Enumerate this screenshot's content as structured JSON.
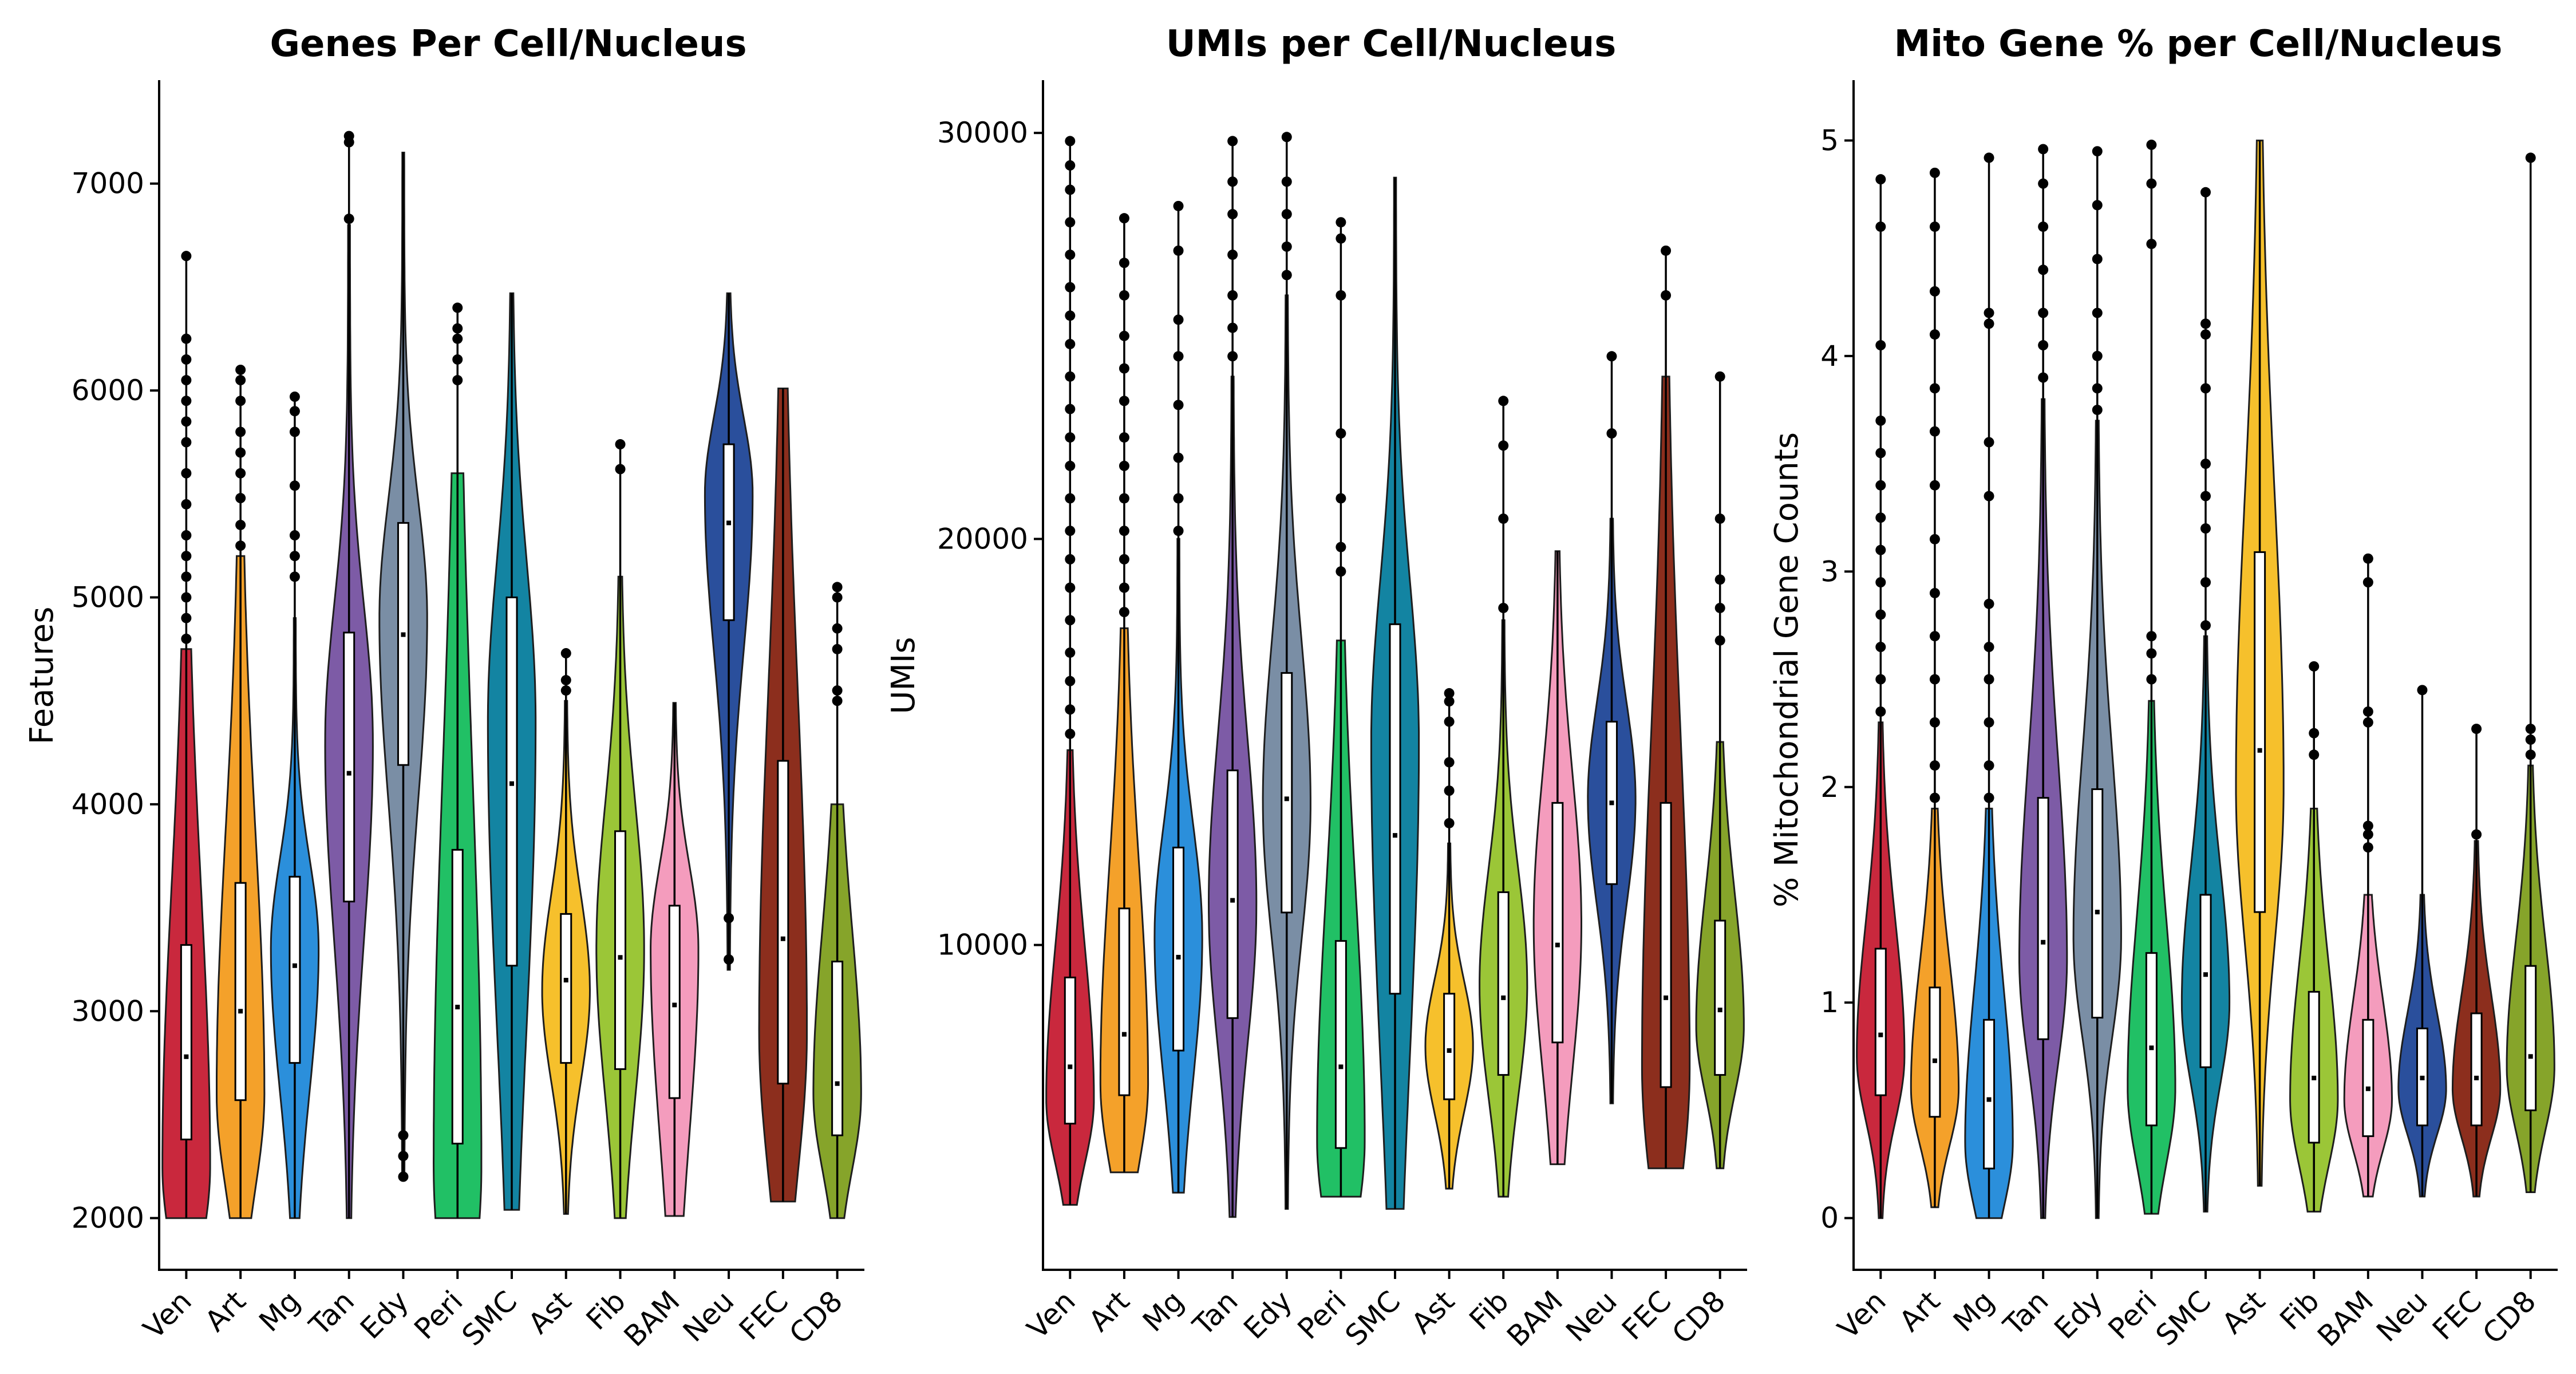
{
  "chart_data": [
    {
      "type": "violin",
      "title": "Genes Per Cell/Nucleus",
      "xlabel": "",
      "ylabel": "Features",
      "ylim": [
        1750,
        7500
      ],
      "yticks": [
        2000,
        3000,
        4000,
        5000,
        6000,
        7000
      ],
      "ytick_labels": [
        "2000",
        "3000",
        "4000",
        "5000",
        "6000",
        "7000"
      ],
      "categories": [
        "Ven",
        "Art",
        "Mg",
        "Tan",
        "Edy",
        "Peri",
        "SMC",
        "Ast",
        "Fib",
        "BAM",
        "Neu",
        "FEC",
        "CD8"
      ],
      "colors": [
        "#c9283d",
        "#f4a12a",
        "#2b8fdb",
        "#7d5ba6",
        "#7a8ea5",
        "#21c065",
        "#1384a2",
        "#f6c02c",
        "#9bc637",
        "#f49cbd",
        "#2a4f9c",
        "#8c2e1d",
        "#86a42a"
      ],
      "series": [
        {
          "min": 2000,
          "q1": 2380,
          "median": 2780,
          "q3": 3320,
          "max": 4750,
          "mode": 2250,
          "outliers": [
            4800,
            4900,
            5000,
            5100,
            5200,
            5300,
            5450,
            5600,
            5750,
            5850,
            5950,
            6050,
            6150,
            6250,
            6650
          ]
        },
        {
          "min": 2000,
          "q1": 2570,
          "median": 3000,
          "q3": 3620,
          "max": 5200,
          "mode": 2600,
          "outliers": [
            5250,
            5350,
            5480,
            5600,
            5700,
            5800,
            5950,
            6050,
            6100
          ]
        },
        {
          "min": 2000,
          "q1": 2750,
          "median": 3220,
          "q3": 3650,
          "max": 4900,
          "mode": 3300,
          "outliers": [
            5100,
            5200,
            5300,
            5540,
            5800,
            5900,
            5970
          ]
        },
        {
          "min": 2000,
          "q1": 3530,
          "median": 4150,
          "q3": 4830,
          "max": 6800,
          "mode": 4300,
          "outliers": [
            6830,
            7200,
            7230
          ]
        },
        {
          "min": 2200,
          "q1": 4190,
          "median": 4820,
          "q3": 5360,
          "max": 7150,
          "mode": 4900,
          "outliers": [
            2200,
            2300,
            2400
          ]
        },
        {
          "min": 2000,
          "q1": 2360,
          "median": 3020,
          "q3": 3780,
          "max": 5600,
          "mode": 2250,
          "outliers": [
            6050,
            6150,
            6250,
            6300,
            6400
          ]
        },
        {
          "min": 2040,
          "q1": 3220,
          "median": 4100,
          "q3": 5000,
          "max": 6470,
          "mode": 4400,
          "outliers": []
        },
        {
          "min": 2020,
          "q1": 2750,
          "median": 3150,
          "q3": 3470,
          "max": 4500,
          "mode": 3100,
          "outliers": [
            4550,
            4600,
            4730
          ]
        },
        {
          "min": 2000,
          "q1": 2720,
          "median": 3260,
          "q3": 3870,
          "max": 5100,
          "mode": 3300,
          "outliers": [
            5620,
            5740
          ]
        },
        {
          "min": 2010,
          "q1": 2580,
          "median": 3030,
          "q3": 3510,
          "max": 4490,
          "mode": 3300,
          "outliers": []
        },
        {
          "min": 3200,
          "q1": 4890,
          "median": 5360,
          "q3": 5740,
          "max": 6470,
          "mode": 5500,
          "outliers": [
            3250,
            3450
          ]
        },
        {
          "min": 2080,
          "q1": 2650,
          "median": 3350,
          "q3": 4210,
          "max": 6010,
          "mode": 2900,
          "outliers": []
        },
        {
          "min": 2000,
          "q1": 2400,
          "median": 2650,
          "q3": 3240,
          "max": 4000,
          "mode": 2600,
          "outliers": [
            4500,
            4550,
            4750,
            4850,
            5000,
            5050
          ]
        }
      ]
    },
    {
      "type": "violin",
      "title": "UMIs per Cell/Nucleus",
      "xlabel": "",
      "ylabel": "UMIs",
      "ylim": [
        2000,
        31300
      ],
      "yticks": [
        10000,
        20000,
        30000
      ],
      "ytick_labels": [
        "10000",
        "20000",
        "30000"
      ],
      "categories": [
        "Ven",
        "Art",
        "Mg",
        "Tan",
        "Edy",
        "Peri",
        "SMC",
        "Ast",
        "Fib",
        "BAM",
        "Neu",
        "FEC",
        "CD8"
      ],
      "colors": [
        "#c9283d",
        "#f4a12a",
        "#2b8fdb",
        "#7d5ba6",
        "#7a8ea5",
        "#21c065",
        "#1384a2",
        "#f6c02c",
        "#9bc637",
        "#f49cbd",
        "#2a4f9c",
        "#8c2e1d",
        "#86a42a"
      ],
      "series": [
        {
          "min": 3600,
          "q1": 5600,
          "median": 7000,
          "q3": 9200,
          "max": 14800,
          "mode": 6200,
          "outliers": [
            15200,
            15800,
            16500,
            17200,
            18000,
            18800,
            19500,
            20200,
            21000,
            21800,
            22500,
            23200,
            24000,
            24800,
            25500,
            26200,
            27000,
            27800,
            28600,
            29200,
            29800
          ]
        },
        {
          "min": 4400,
          "q1": 6300,
          "median": 7800,
          "q3": 10900,
          "max": 17800,
          "mode": 6600,
          "outliers": [
            18200,
            18800,
            19500,
            20200,
            21000,
            21800,
            22500,
            23400,
            24200,
            25000,
            26000,
            26800,
            27900
          ]
        },
        {
          "min": 3900,
          "q1": 7400,
          "median": 9700,
          "q3": 12400,
          "max": 20000,
          "mode": 10200,
          "outliers": [
            20200,
            21000,
            22000,
            23300,
            24500,
            25400,
            27100,
            28200
          ]
        },
        {
          "min": 3300,
          "q1": 8200,
          "median": 11100,
          "q3": 14300,
          "max": 24000,
          "mode": 11000,
          "outliers": [
            24500,
            25200,
            26000,
            27000,
            28000,
            28800,
            29800
          ]
        },
        {
          "min": 3500,
          "q1": 10800,
          "median": 13600,
          "q3": 16700,
          "max": 26000,
          "mode": 13500,
          "outliers": [
            26500,
            27200,
            28000,
            28800,
            29900
          ]
        },
        {
          "min": 3800,
          "q1": 5000,
          "median": 7000,
          "q3": 10100,
          "max": 17500,
          "mode": 5200,
          "outliers": [
            19200,
            19800,
            21000,
            22600,
            26000,
            27400,
            27800
          ]
        },
        {
          "min": 3500,
          "q1": 8800,
          "median": 12700,
          "q3": 17900,
          "max": 28900,
          "mode": 15000,
          "outliers": []
        },
        {
          "min": 4000,
          "q1": 6200,
          "median": 7400,
          "q3": 8800,
          "max": 12500,
          "mode": 7500,
          "outliers": [
            13000,
            13800,
            14500,
            15500,
            16000,
            16200
          ]
        },
        {
          "min": 3800,
          "q1": 6800,
          "median": 8700,
          "q3": 11300,
          "max": 18000,
          "mode": 9000,
          "outliers": [
            18300,
            20500,
            22300,
            23400
          ]
        },
        {
          "min": 4600,
          "q1": 7600,
          "median": 10000,
          "q3": 13500,
          "max": 19700,
          "mode": 10500,
          "outliers": []
        },
        {
          "min": 6100,
          "q1": 11500,
          "median": 13500,
          "q3": 15500,
          "max": 20500,
          "mode": 13600,
          "outliers": [
            22600,
            24500
          ]
        },
        {
          "min": 4500,
          "q1": 6500,
          "median": 8700,
          "q3": 13500,
          "max": 24000,
          "mode": 7000,
          "outliers": [
            26000,
            27100
          ]
        },
        {
          "min": 4500,
          "q1": 6800,
          "median": 8400,
          "q3": 10600,
          "max": 15000,
          "mode": 8000,
          "outliers": [
            17500,
            18300,
            19000,
            20500,
            24000
          ]
        }
      ]
    },
    {
      "type": "violin",
      "title": "Mito Gene % per Cell/Nucleus",
      "xlabel": "",
      "ylabel": "% Mitochondrial Gene Counts",
      "ylim": [
        -0.24,
        5.28
      ],
      "yticks": [
        0,
        1,
        2,
        3,
        4,
        5
      ],
      "ytick_labels": [
        "0",
        "1",
        "2",
        "3",
        "4",
        "5"
      ],
      "categories": [
        "Ven",
        "Art",
        "Mg",
        "Tan",
        "Edy",
        "Peri",
        "SMC",
        "Ast",
        "Fib",
        "BAM",
        "Neu",
        "FEC",
        "CD8"
      ],
      "colors": [
        "#c9283d",
        "#f4a12a",
        "#2b8fdb",
        "#7d5ba6",
        "#7a8ea5",
        "#21c065",
        "#1384a2",
        "#f6c02c",
        "#9bc637",
        "#f49cbd",
        "#2a4f9c",
        "#8c2e1d",
        "#86a42a"
      ],
      "series": [
        {
          "min": 0,
          "q1": 0.57,
          "median": 0.85,
          "q3": 1.25,
          "max": 2.3,
          "mode": 0.75,
          "outliers": [
            2.35,
            2.5,
            2.65,
            2.8,
            2.95,
            3.1,
            3.25,
            3.4,
            3.55,
            3.7,
            4.05,
            4.6,
            4.82
          ]
        },
        {
          "min": 0.05,
          "q1": 0.47,
          "median": 0.73,
          "q3": 1.07,
          "max": 1.9,
          "mode": 0.6,
          "outliers": [
            1.95,
            2.1,
            2.3,
            2.5,
            2.7,
            2.9,
            3.15,
            3.4,
            3.65,
            3.85,
            4.1,
            4.3,
            4.6,
            4.85
          ]
        },
        {
          "min": 0,
          "q1": 0.23,
          "median": 0.55,
          "q3": 0.92,
          "max": 1.9,
          "mode": 0.35,
          "outliers": [
            1.95,
            2.1,
            2.3,
            2.5,
            2.65,
            2.85,
            3.35,
            3.6,
            4.15,
            4.2,
            4.92
          ]
        },
        {
          "min": 0,
          "q1": 0.83,
          "median": 1.28,
          "q3": 1.95,
          "max": 3.8,
          "mode": 1.2,
          "outliers": [
            3.9,
            4.05,
            4.2,
            4.4,
            4.6,
            4.8,
            4.96
          ]
        },
        {
          "min": 0,
          "q1": 0.93,
          "median": 1.42,
          "q3": 1.99,
          "max": 3.7,
          "mode": 1.3,
          "outliers": [
            3.75,
            3.85,
            4.0,
            4.2,
            4.45,
            4.7,
            4.95
          ]
        },
        {
          "min": 0.02,
          "q1": 0.43,
          "median": 0.79,
          "q3": 1.23,
          "max": 2.4,
          "mode": 0.6,
          "outliers": [
            2.5,
            2.62,
            2.7,
            4.52,
            4.8,
            4.98
          ]
        },
        {
          "min": 0.03,
          "q1": 0.7,
          "median": 1.13,
          "q3": 1.5,
          "max": 2.7,
          "mode": 1.0,
          "outliers": [
            2.75,
            2.95,
            3.2,
            3.35,
            3.5,
            3.85,
            4.1,
            4.15,
            4.76
          ]
        },
        {
          "min": 0.15,
          "q1": 1.42,
          "median": 2.17,
          "q3": 3.09,
          "max": 5.0,
          "mode": 2.0,
          "outliers": []
        },
        {
          "min": 0.03,
          "q1": 0.35,
          "median": 0.65,
          "q3": 1.05,
          "max": 1.9,
          "mode": 0.55,
          "outliers": [
            2.15,
            2.25,
            2.56
          ]
        },
        {
          "min": 0.1,
          "q1": 0.38,
          "median": 0.6,
          "q3": 0.92,
          "max": 1.5,
          "mode": 0.55,
          "outliers": [
            1.72,
            1.78,
            1.82,
            2.3,
            2.35,
            2.95,
            3.06
          ]
        },
        {
          "min": 0.1,
          "q1": 0.43,
          "median": 0.65,
          "q3": 0.88,
          "max": 1.5,
          "mode": 0.6,
          "outliers": [
            2.45
          ]
        },
        {
          "min": 0.1,
          "q1": 0.43,
          "median": 0.65,
          "q3": 0.95,
          "max": 1.75,
          "mode": 0.6,
          "outliers": [
            1.78,
            2.27
          ]
        },
        {
          "min": 0.12,
          "q1": 0.5,
          "median": 0.75,
          "q3": 1.17,
          "max": 2.1,
          "mode": 0.7,
          "outliers": [
            2.15,
            2.22,
            2.27,
            4.92
          ]
        }
      ]
    }
  ]
}
